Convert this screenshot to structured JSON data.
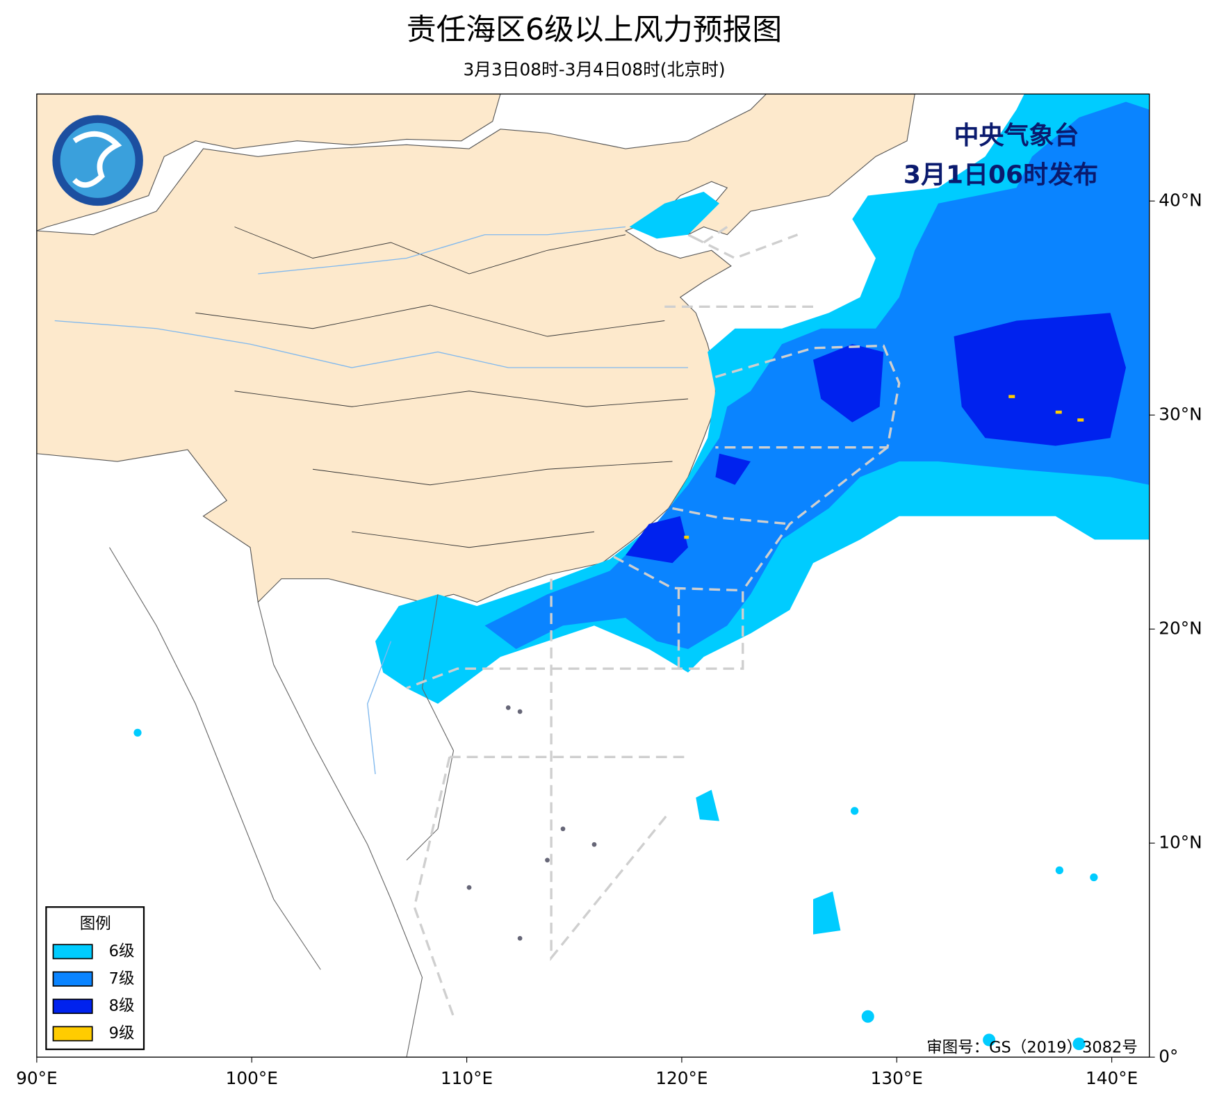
{
  "header": {
    "title": "责任海区6级以上风力预报图",
    "subtitle": "3月3日08时-3月4日08时(北京时)"
  },
  "issuer": {
    "name": "中央气象台",
    "time": "3月1日06时发布"
  },
  "legend": {
    "title": "图例",
    "items": [
      {
        "label": "6级",
        "color": "#00ccff"
      },
      {
        "label": "7级",
        "color": "#0a84ff"
      },
      {
        "label": "8级",
        "color": "#0022ee"
      },
      {
        "label": "9级",
        "color": "#ffcc00"
      }
    ]
  },
  "map": {
    "xlim": [
      90,
      141.75
    ],
    "ylim": [
      0,
      45
    ],
    "xticks": [
      {
        "value": 90,
        "label": "90°E"
      },
      {
        "value": 100,
        "label": "100°E"
      },
      {
        "value": 110,
        "label": "110°E"
      },
      {
        "value": 120,
        "label": "120°E"
      },
      {
        "value": 130,
        "label": "130°E"
      },
      {
        "value": 140,
        "label": "140°E"
      }
    ],
    "yticks": [
      {
        "value": 0,
        "label": "0°"
      },
      {
        "value": 10,
        "label": "10°N"
      },
      {
        "value": 20,
        "label": "20°N"
      },
      {
        "value": 30,
        "label": "30°N"
      },
      {
        "value": 40,
        "label": "40°N"
      }
    ]
  },
  "approval": "审图号：GS（2019）3082号"
}
